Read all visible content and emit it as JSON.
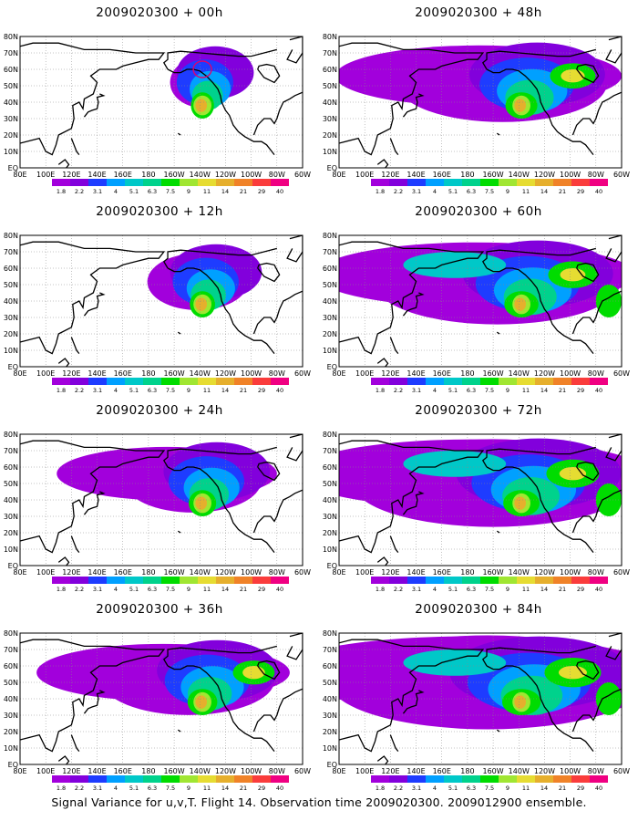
{
  "caption": "Signal Variance for u,v,T. Flight 14. Observation time 2009020300. 2009012900 ensemble.",
  "lat_labels": [
    "80N",
    "70N",
    "60N",
    "50N",
    "40N",
    "30N",
    "20N",
    "10N",
    "EQ"
  ],
  "lon_labels": [
    "80E",
    "100E",
    "120E",
    "140E",
    "160E",
    "180",
    "160W",
    "140W",
    "120W",
    "100W",
    "80W",
    "60W"
  ],
  "colorbar": {
    "labels": [
      "1.8",
      "2.2",
      "3.1",
      "4",
      "5.1",
      "6.3",
      "7.5",
      "9",
      "11",
      "14",
      "21",
      "29",
      "40"
    ],
    "colors": [
      "#a200dc",
      "#8200dc",
      "#1e3cff",
      "#00a0ff",
      "#00c8c8",
      "#00d28c",
      "#00dc00",
      "#a0e632",
      "#e6dc32",
      "#e6af2d",
      "#f08228",
      "#fa3c3c",
      "#f00082"
    ]
  },
  "panels": [
    {
      "id": "p00",
      "title": "2009020300 + 00h",
      "lead": 0
    },
    {
      "id": "p48",
      "title": "2009020300 + 48h",
      "lead": 48
    },
    {
      "id": "p12",
      "title": "2009020300 + 12h",
      "lead": 12
    },
    {
      "id": "p60",
      "title": "2009020300 + 60h",
      "lead": 60
    },
    {
      "id": "p24",
      "title": "2009020300 + 24h",
      "lead": 24
    },
    {
      "id": "p72",
      "title": "2009020300 + 72h",
      "lead": 72
    },
    {
      "id": "p36",
      "title": "2009020300 + 36h",
      "lead": 36
    },
    {
      "id": "p84",
      "title": "2009020300 + 84h",
      "lead": 84
    }
  ]
}
